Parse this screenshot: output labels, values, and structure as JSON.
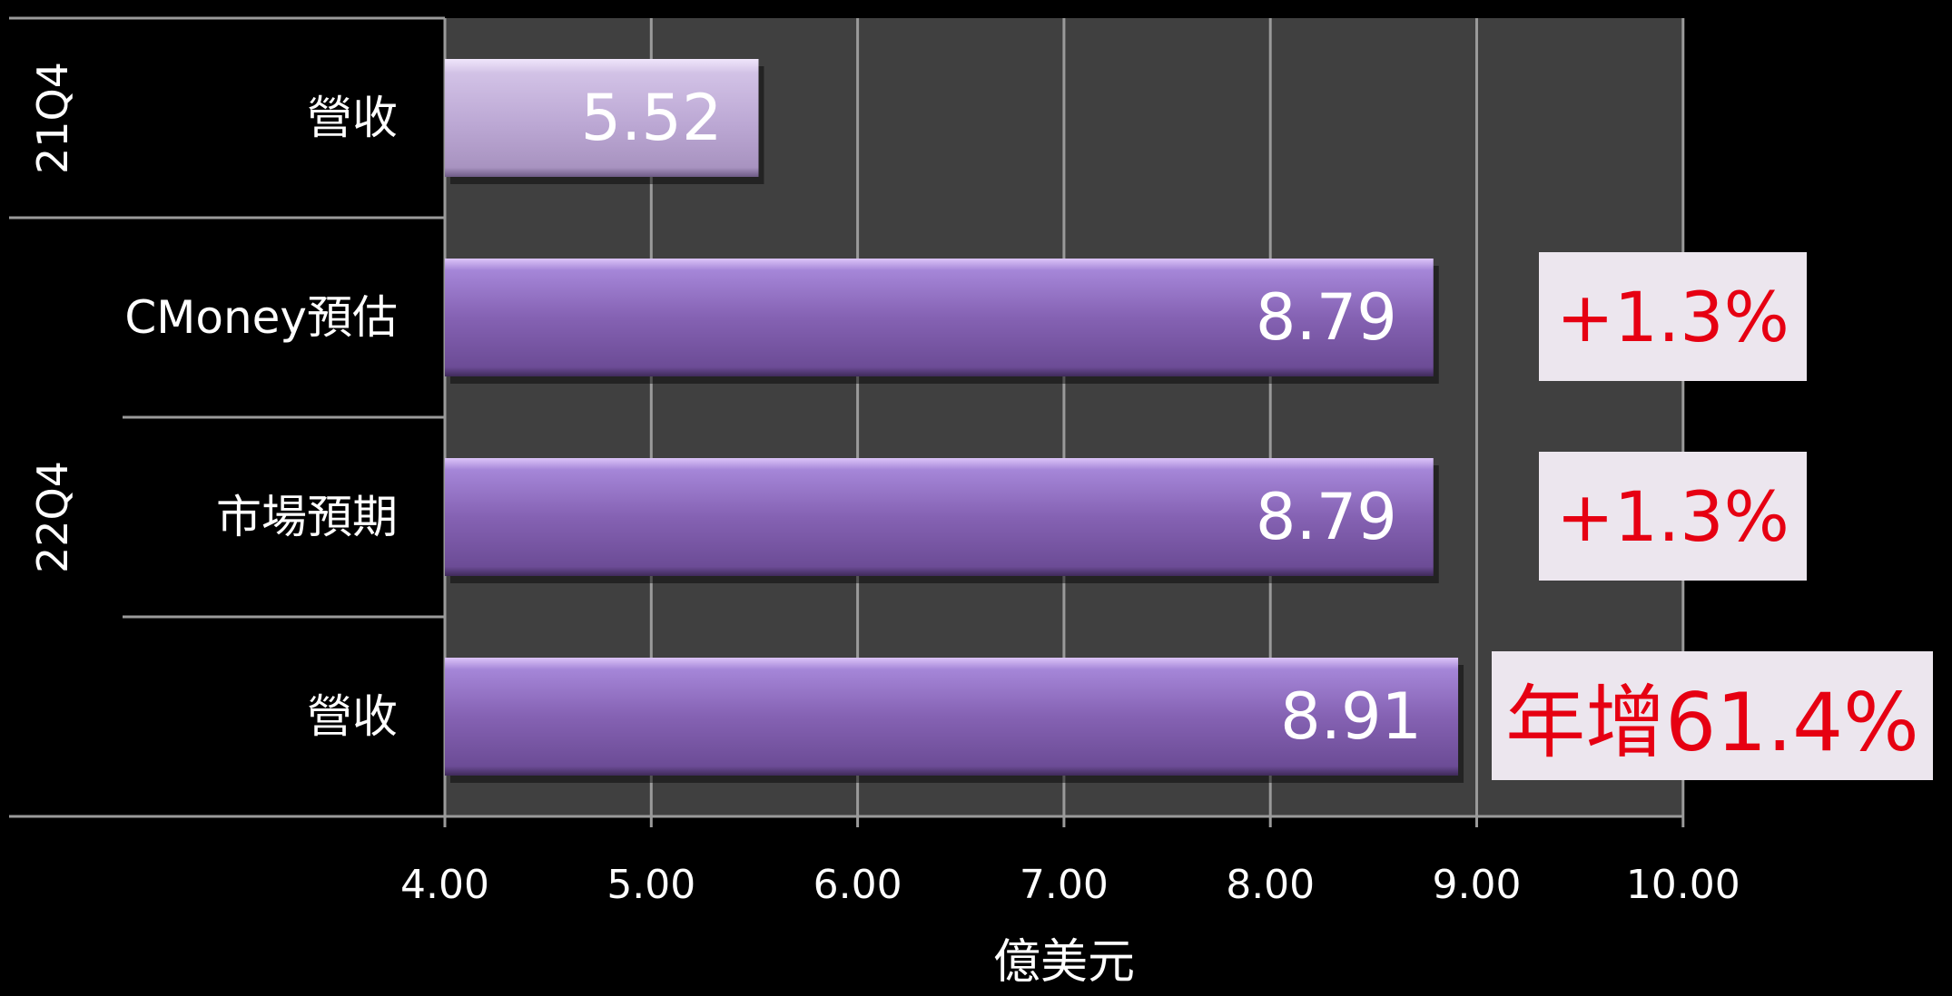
{
  "chart_data": {
    "type": "bar",
    "orientation": "horizontal",
    "xlabel": "億美元",
    "xlim": [
      4,
      10
    ],
    "xticks": [
      "4.00",
      "5.00",
      "6.00",
      "7.00",
      "8.00",
      "9.00",
      "10.00"
    ],
    "grid": true,
    "groups": [
      {
        "label": "21Q4",
        "rows": [
          {
            "label": "營收",
            "value": 5.52,
            "value_label": "5.52"
          }
        ]
      },
      {
        "label": "22Q4",
        "rows": [
          {
            "label": "CMoney預估",
            "value": 8.79,
            "value_label": "8.79",
            "annotation": "+1.3%"
          },
          {
            "label": "市場預期",
            "value": 8.79,
            "value_label": "8.79",
            "annotation": "+1.3%"
          },
          {
            "label": "營收",
            "value": 8.91,
            "value_label": "8.91",
            "annotation": "年增61.4%"
          }
        ]
      }
    ],
    "colors": {
      "background": "#000000",
      "plot_area": "#404040",
      "bar_light": "#c5b3d9",
      "bar": "#8560b0",
      "annotation_text": "#e60012",
      "annotation_bg": "#ece6ee"
    }
  }
}
